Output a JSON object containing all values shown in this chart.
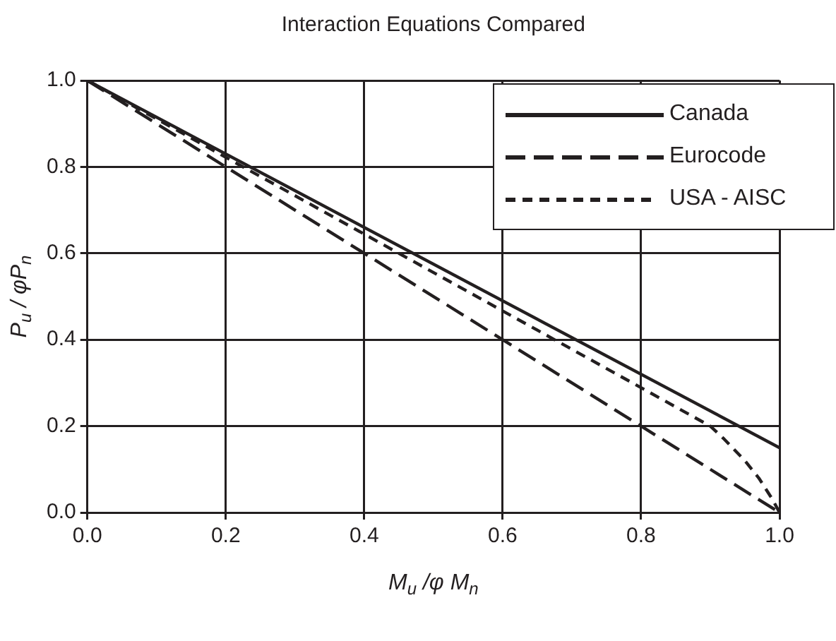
{
  "chart_data": {
    "type": "line",
    "title": "Interaction Equations Compared",
    "xlabel": "M$_{u}$ /φ M$_{n}$",
    "ylabel": "P$_{u}$ / φP$_{n}$",
    "xlim": [
      0,
      1
    ],
    "ylim": [
      0,
      1
    ],
    "xticks": [
      {
        "value": 0,
        "label": "0.0"
      },
      0.2,
      0.4,
      0.6,
      0.8,
      {
        "value": 1,
        "label": "1.0"
      }
    ],
    "yticks": [
      {
        "value": 0,
        "label": "0.0"
      },
      0.2,
      0.4,
      0.6,
      0.8,
      {
        "value": 1,
        "label": "1.0"
      }
    ],
    "grid": true,
    "legend": "top right",
    "marker": "none",
    "series": [
      {
        "name": "Canada",
        "color": "#231f20",
        "line_style": "solid",
        "x": [
          0,
          1
        ],
        "values": [
          1,
          0.15
        ]
      },
      {
        "name": "Eurocode",
        "color": "#231f20",
        "line_style": "dashed",
        "x": [
          0,
          1
        ],
        "values": [
          1,
          0
        ]
      },
      {
        "name": "USA - AISC",
        "color": "#231f20",
        "line_style": "dashed",
        "x": [
          0,
          0.9,
          0.92,
          0.95,
          0.97,
          0.99,
          1
        ],
        "values": [
          1,
          0.2,
          0.17,
          0.12,
          0.08,
          0.03,
          0
        ]
      }
    ]
  }
}
